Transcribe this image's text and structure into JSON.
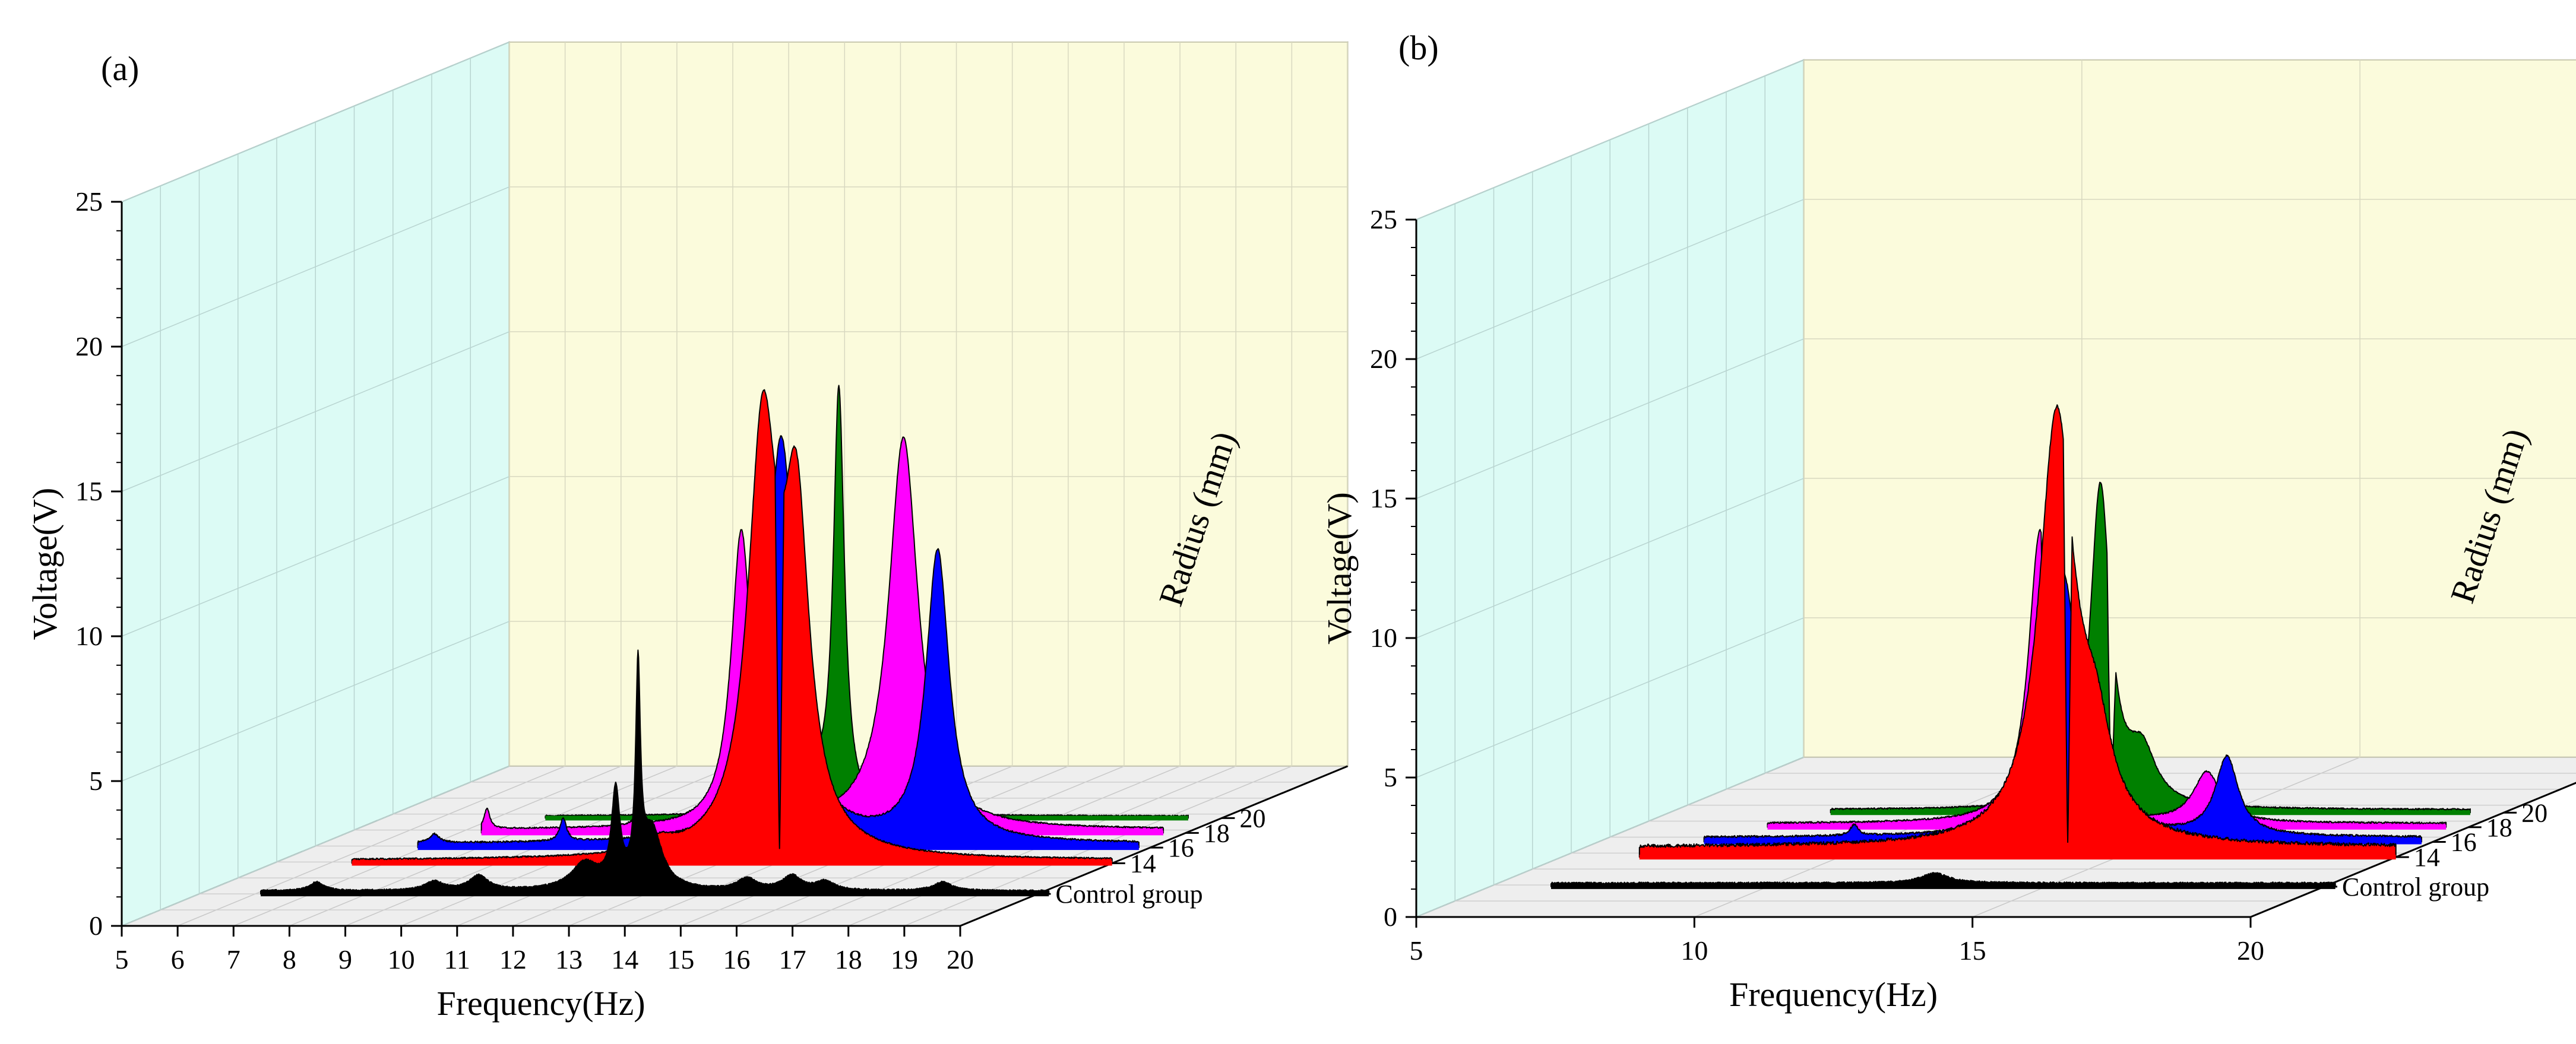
{
  "chart_data": [
    {
      "type": "area",
      "panel_label": "(a)",
      "xlabel": "Frequency(Hz)",
      "ylabel": "Voltage(V)",
      "zlabel": "Radius (mm)",
      "xlim": [
        5,
        20
      ],
      "ylim": [
        0,
        25
      ],
      "x_ticks": [
        "5",
        "6",
        "7",
        "8",
        "9",
        "10",
        "11",
        "12",
        "13",
        "14",
        "15",
        "16",
        "17",
        "18",
        "19",
        "20"
      ],
      "y_ticks": [
        "0",
        "5",
        "10",
        "15",
        "20",
        "25"
      ],
      "series": [
        {
          "name": "Control group",
          "color": "#000000",
          "x_start": 6.1,
          "base": 0.08,
          "noise": 0.05,
          "peaks": [
            [
              12.45,
              3.2,
              0.09
            ],
            [
              12.85,
              7.2,
              0.05
            ],
            [
              13.1,
              2.0,
              0.22
            ],
            [
              11.9,
              0.9,
              0.3
            ],
            [
              10.0,
              0.5,
              0.2
            ],
            [
              15.6,
              0.5,
              0.2
            ],
            [
              9.2,
              0.3,
              0.2
            ],
            [
              14.8,
              0.4,
              0.2
            ],
            [
              7.1,
              0.3,
              0.15
            ],
            [
              16.2,
              0.3,
              0.2
            ],
            [
              18.3,
              0.3,
              0.2
            ]
          ],
          "xmax": 20.2
        },
        {
          "name": "14",
          "color": "#ff0000",
          "x_start": 6.4,
          "base": 0.08,
          "noise": 0.05,
          "peaks": [
            [
              13.75,
              14.2,
              0.32
            ],
            [
              14.35,
              11.0,
              0.28
            ],
            [
              11.9,
              0.4,
              0.3
            ]
          ],
          "notch": 14.05,
          "xmax": 20.0
        },
        {
          "name": "16",
          "color": "#0000ff",
          "x_start": 6.9,
          "base": 0.1,
          "noise": 0.06,
          "peaks": [
            [
              13.4,
              14.0,
              0.32
            ],
            [
              16.2,
              10.0,
              0.25
            ],
            [
              9.5,
              0.8,
              0.07
            ],
            [
              7.2,
              0.3,
              0.1
            ]
          ],
          "notch": 13.7,
          "xmax": 19.8
        },
        {
          "name": "18",
          "color": "#ff00ff",
          "x_start": 7.4,
          "base": 0.08,
          "noise": 0.05,
          "peaks": [
            [
              12.05,
              10.2,
              0.22
            ],
            [
              14.95,
              13.5,
              0.32
            ],
            [
              7.5,
              0.7,
              0.06
            ],
            [
              10.2,
              0.3,
              0.1
            ]
          ],
          "notch": 12.3,
          "xmax": 19.6
        },
        {
          "name": "20",
          "color": "#008000",
          "x_start": 7.9,
          "base": 0.05,
          "noise": 0.04,
          "peaks": [
            [
              12.4,
              8.0,
              0.16
            ],
            [
              13.15,
              14.5,
              0.12
            ]
          ],
          "notch": 12.7,
          "xmax": 19.4
        }
      ]
    },
    {
      "type": "area",
      "panel_label": "(b)",
      "xlabel": "Frequency(Hz)",
      "ylabel": "Voltage(V)",
      "zlabel": "Radius (mm)",
      "xlim": [
        5,
        20
      ],
      "ylim": [
        0,
        25
      ],
      "x_ticks": [
        "5",
        "10",
        "15",
        "20"
      ],
      "y_ticks": [
        "0",
        "5",
        "10",
        "15",
        "20",
        "25"
      ],
      "series": [
        {
          "name": "Control group",
          "color": "#000000",
          "x_start": 6.1,
          "base": 0.1,
          "noise": 0.06,
          "peaks": [
            [
              13.0,
              0.35,
              0.3
            ]
          ],
          "xmax": 20.2
        },
        {
          "name": "14",
          "color": "#ff0000",
          "x_start": 6.4,
          "base": 0.3,
          "noise": 0.12,
          "peaks": [
            [
              13.9,
              15.2,
              0.38
            ],
            [
              14.6,
              3.0,
              0.35
            ]
          ],
          "notch": 14.1,
          "xmax": 20.0
        },
        {
          "name": "16",
          "color": "#0000ff",
          "x_start": 6.9,
          "base": 0.12,
          "noise": 0.07,
          "peaks": [
            [
              13.35,
              9.5,
              0.35
            ],
            [
              16.3,
              2.8,
              0.25
            ],
            [
              9.6,
              0.4,
              0.08
            ]
          ],
          "notch": 13.65,
          "xmax": 19.8
        },
        {
          "name": "18",
          "color": "#ff00ff",
          "x_start": 7.4,
          "base": 0.1,
          "noise": 0.06,
          "peaks": [
            [
              12.3,
              10.5,
              0.25
            ],
            [
              15.3,
              1.8,
              0.3
            ]
          ],
          "notch": 12.4,
          "xmax": 19.6
        },
        {
          "name": "20",
          "color": "#008000",
          "x_start": 7.9,
          "base": 0.08,
          "noise": 0.05,
          "peaks": [
            [
              12.75,
              11.5,
              0.22
            ],
            [
              13.5,
              1.8,
              0.3
            ]
          ],
          "notch": 12.95,
          "xmax": 19.4
        }
      ]
    }
  ]
}
